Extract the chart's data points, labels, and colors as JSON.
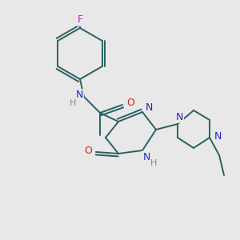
{
  "bg_color": "#e8e8e8",
  "atom_colors": {
    "N": "#2222cc",
    "O": "#cc2222",
    "F": "#cc22cc",
    "H": "#888888"
  },
  "bond_color": "#2a6060",
  "bond_width": 1.4,
  "figsize": [
    3.0,
    3.0
  ],
  "dpi": 100,
  "xlim": [
    0,
    300
  ],
  "ylim": [
    0,
    300
  ]
}
